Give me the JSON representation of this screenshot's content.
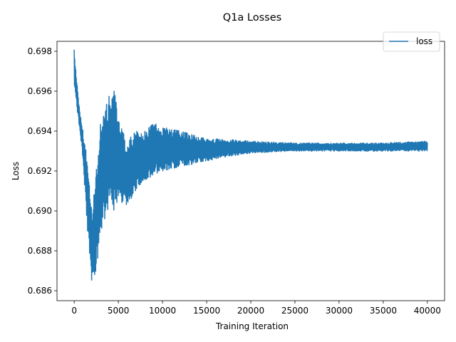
{
  "chart_data": {
    "type": "line",
    "title": "Q1a Losses",
    "xlabel": "Training Iteration",
    "ylabel": "Loss",
    "xlim": [
      -1950,
      41950
    ],
    "ylim": [
      0.6855,
      0.6985
    ],
    "x_ticks": [
      0,
      5000,
      10000,
      15000,
      20000,
      25000,
      30000,
      35000,
      40000
    ],
    "x_tick_labels": [
      "0",
      "5000",
      "10000",
      "15000",
      "20000",
      "25000",
      "30000",
      "35000",
      "40000"
    ],
    "y_ticks": [
      0.686,
      0.688,
      0.69,
      0.692,
      0.694,
      0.696,
      0.698
    ],
    "y_tick_labels": [
      "0.686",
      "0.688",
      "0.690",
      "0.692",
      "0.694",
      "0.696",
      "0.698"
    ],
    "grid": false,
    "legend": {
      "position": "top-right",
      "entries": [
        "loss"
      ]
    },
    "series": [
      {
        "name": "loss",
        "color": "#1f77b4",
        "envelope": {
          "x": [
            0,
            200,
            500,
            1000,
            1500,
            2000,
            2500,
            3000,
            4000,
            4600,
            5000,
            6000,
            7000,
            8000,
            9000,
            10000,
            12000,
            15000,
            17000,
            20000,
            25000,
            30000,
            35000,
            40000
          ],
          "upper": [
            0.6981,
            0.697,
            0.6955,
            0.694,
            0.6925,
            0.69,
            0.692,
            0.6948,
            0.6958,
            0.6962,
            0.6945,
            0.6935,
            0.694,
            0.694,
            0.6944,
            0.6942,
            0.694,
            0.6936,
            0.6936,
            0.6935,
            0.6934,
            0.6934,
            0.6934,
            0.6935
          ],
          "lower": [
            0.6962,
            0.6955,
            0.6945,
            0.6925,
            0.689,
            0.6863,
            0.687,
            0.689,
            0.6902,
            0.69,
            0.6905,
            0.6903,
            0.691,
            0.6915,
            0.6918,
            0.692,
            0.6922,
            0.6925,
            0.6927,
            0.6929,
            0.693,
            0.693,
            0.693,
            0.693
          ]
        }
      }
    ]
  }
}
